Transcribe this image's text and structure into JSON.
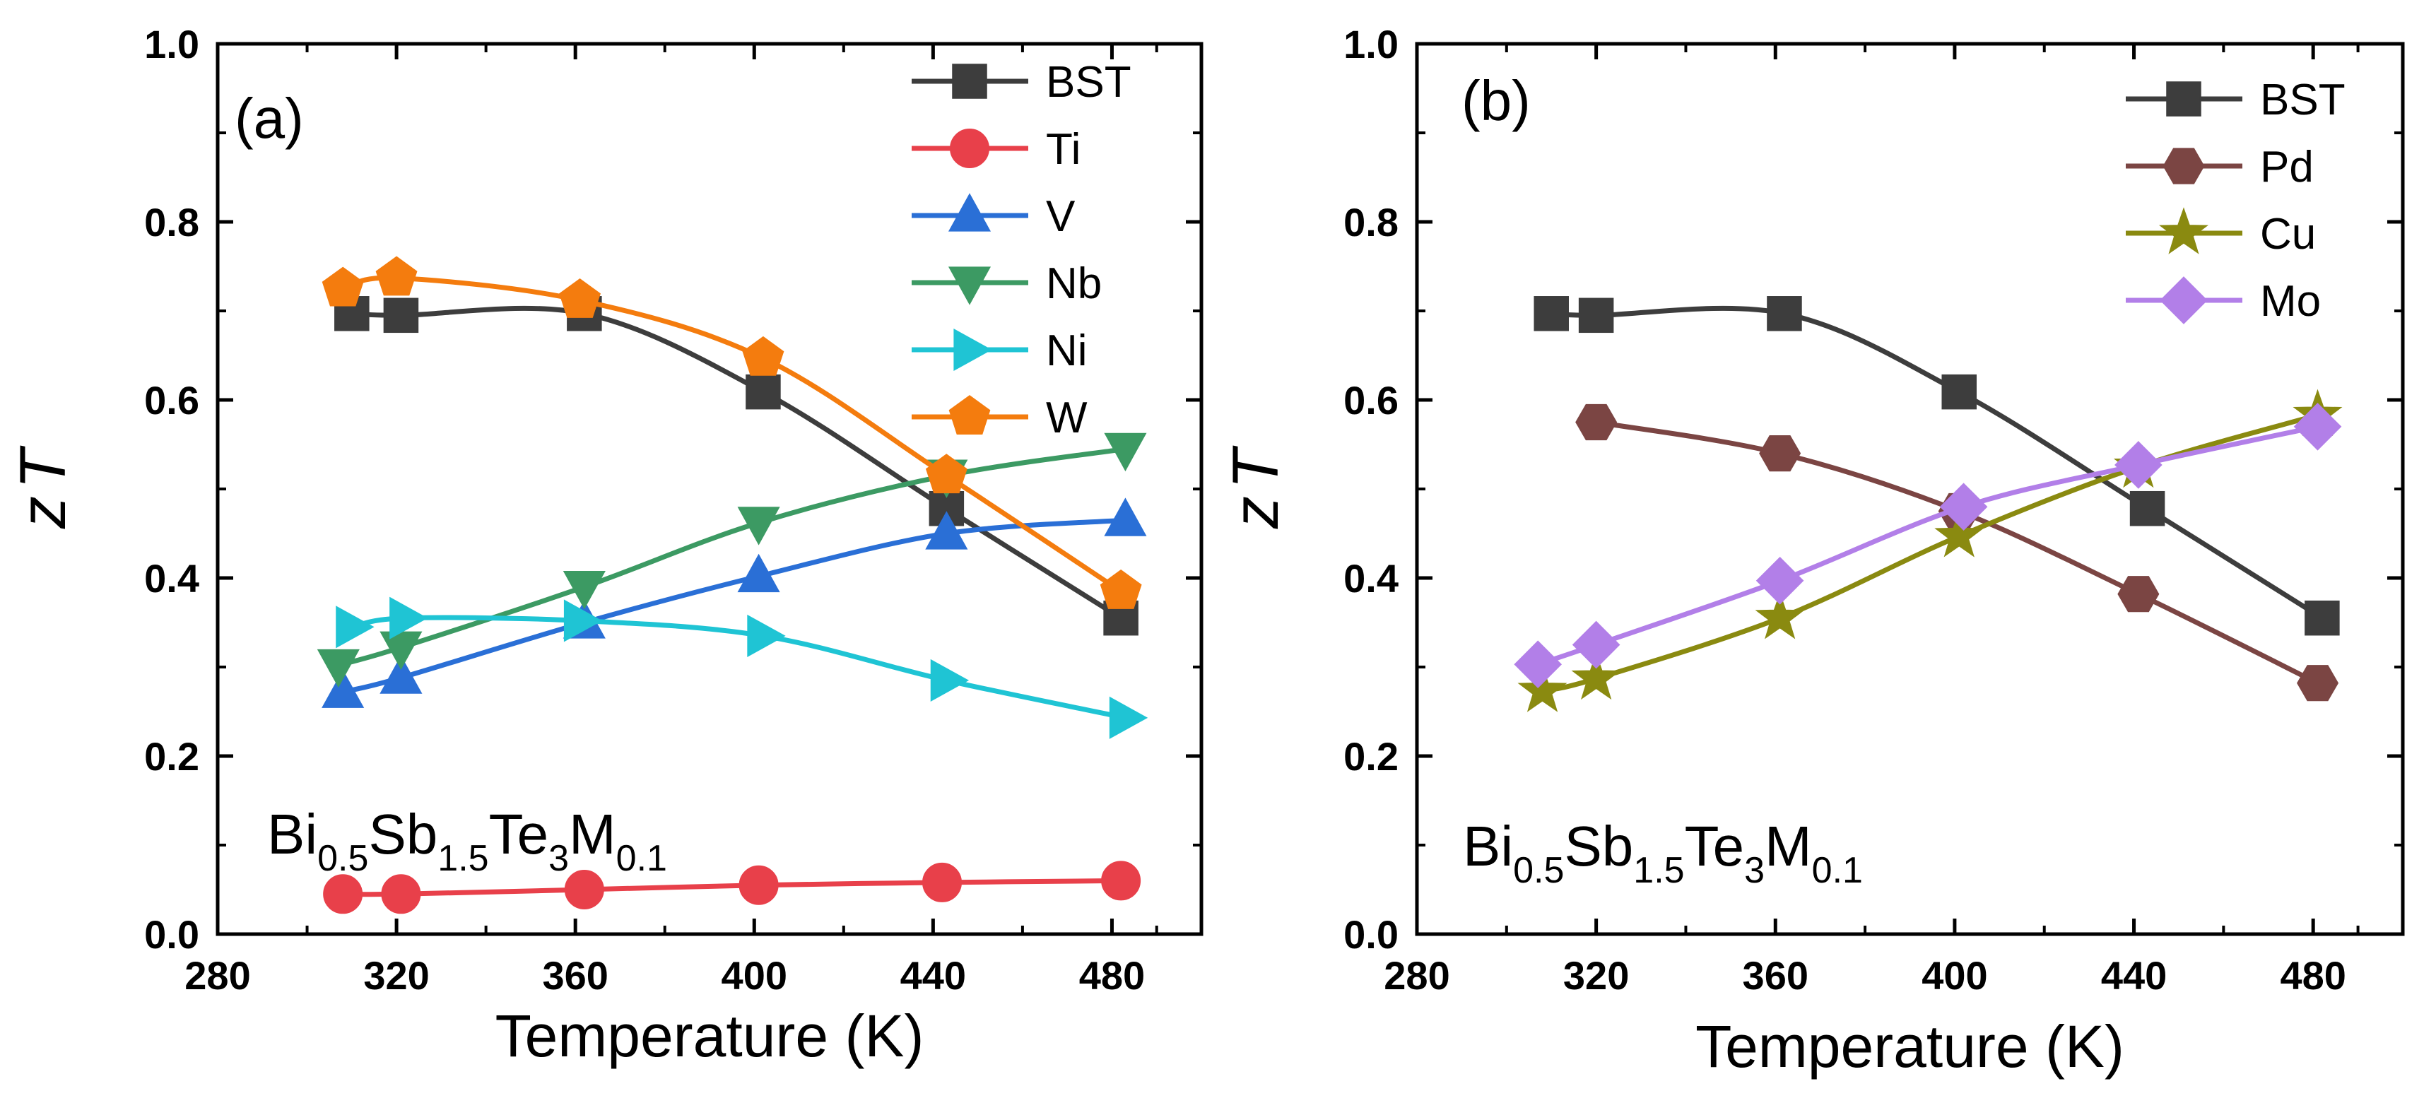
{
  "chart_data": [
    {
      "type": "line",
      "panel_label": "(a)",
      "xlabel": "Temperature (K)",
      "ylabel_z": "z",
      "ylabel_T": "T",
      "xlim": [
        280,
        500
      ],
      "ylim": [
        0.0,
        1.0
      ],
      "xticks": [
        280,
        320,
        360,
        400,
        440,
        480
      ],
      "yticks": [
        0.0,
        0.2,
        0.4,
        0.6,
        0.8,
        1.0
      ],
      "xtick_labels": [
        "280",
        "320",
        "360",
        "400",
        "440",
        "480"
      ],
      "ytick_labels": [
        "0.0",
        "0.2",
        "0.4",
        "0.6",
        "0.8",
        "1.0"
      ],
      "legend_position": "top-right",
      "annotation": {
        "parts": [
          "Bi",
          "0.5",
          "Sb",
          "1.5",
          "Te",
          "3",
          "M",
          "0.1"
        ]
      },
      "series": [
        {
          "name": "BST",
          "marker": "square",
          "color": "#3d3d3d",
          "x": [
            310,
            321,
            362,
            402,
            443,
            482
          ],
          "y": [
            0.697,
            0.695,
            0.697,
            0.609,
            0.478,
            0.355
          ]
        },
        {
          "name": "Ti",
          "marker": "circle",
          "color": "#e8404a",
          "x": [
            308,
            321,
            362,
            401,
            442,
            482
          ],
          "y": [
            0.045,
            0.045,
            0.05,
            0.055,
            0.058,
            0.06
          ]
        },
        {
          "name": "V",
          "marker": "triangle-up",
          "color": "#2a6fd6",
          "x": [
            308,
            321,
            362,
            401,
            443,
            483
          ],
          "y": [
            0.272,
            0.288,
            0.35,
            0.402,
            0.45,
            0.465
          ]
        },
        {
          "name": "Nb",
          "marker": "triangle-down",
          "color": "#3c9a63",
          "x": [
            307,
            321,
            362,
            401,
            443,
            483
          ],
          "y": [
            0.302,
            0.322,
            0.39,
            0.462,
            0.515,
            0.545
          ]
        },
        {
          "name": "Ni",
          "marker": "triangle-right",
          "color": "#1fc4d4",
          "x": [
            310,
            322,
            361,
            402,
            443,
            483
          ],
          "y": [
            0.345,
            0.355,
            0.352,
            0.335,
            0.285,
            0.243
          ]
        },
        {
          "name": "W",
          "marker": "pentagon",
          "color": "#f47c0e",
          "x": [
            308,
            320,
            361,
            402,
            443,
            482
          ],
          "y": [
            0.725,
            0.737,
            0.712,
            0.647,
            0.515,
            0.385
          ]
        }
      ]
    },
    {
      "type": "line",
      "panel_label": "(b)",
      "xlabel": "Temperature (K)",
      "ylabel_z": "z",
      "ylabel_T": "T",
      "xlim": [
        280,
        500
      ],
      "ylim": [
        0.0,
        1.0
      ],
      "xticks": [
        280,
        320,
        360,
        400,
        440,
        480
      ],
      "yticks": [
        0.0,
        0.2,
        0.4,
        0.6,
        0.8,
        1.0
      ],
      "xtick_labels": [
        "280",
        "320",
        "360",
        "400",
        "440",
        "480"
      ],
      "ytick_labels": [
        "0.0",
        "0.2",
        "0.4",
        "0.6",
        "0.8",
        "1.0"
      ],
      "legend_position": "top-right",
      "annotation": {
        "parts": [
          "Bi",
          "0.5",
          "Sb",
          "1.5",
          "Te",
          "3",
          "M",
          "0.1"
        ]
      },
      "series": [
        {
          "name": "BST",
          "marker": "square",
          "color": "#3d3d3d",
          "x": [
            310,
            320,
            362,
            401,
            443,
            482
          ],
          "y": [
            0.697,
            0.695,
            0.697,
            0.609,
            0.478,
            0.355
          ]
        },
        {
          "name": "Pd",
          "marker": "hexagon",
          "color": "#7b4543",
          "x": [
            320,
            361,
            401,
            441,
            481
          ],
          "y": [
            0.575,
            0.54,
            0.475,
            0.382,
            0.282
          ]
        },
        {
          "name": "Cu",
          "marker": "star",
          "color": "#8a8a10",
          "x": [
            308,
            320,
            361,
            401,
            441,
            481
          ],
          "y": [
            0.273,
            0.287,
            0.355,
            0.447,
            0.525,
            0.583
          ]
        },
        {
          "name": "Mo",
          "marker": "diamond",
          "color": "#b27fe8",
          "x": [
            307,
            320,
            361,
            402,
            441,
            481
          ],
          "y": [
            0.303,
            0.325,
            0.397,
            0.48,
            0.527,
            0.57
          ]
        }
      ]
    }
  ]
}
